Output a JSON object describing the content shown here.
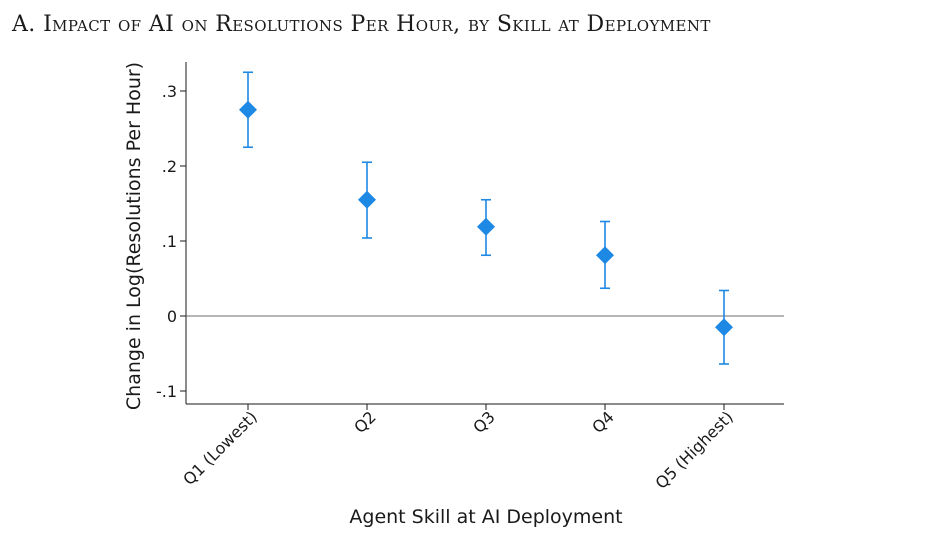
{
  "title": "A. Impact of AI on Resolutions Per Hour, by Skill at Deployment",
  "chart_data": {
    "type": "scatter",
    "title": "A. Impact of AI on Resolutions Per Hour, by Skill at Deployment",
    "xlabel": "Agent Skill at AI Deployment",
    "ylabel": "Change in Log(Resolutions Per Hour)",
    "categories": [
      "Q1 (Lowest)",
      "Q2",
      "Q3",
      "Q4",
      "Q5 (Highest)"
    ],
    "series": [
      {
        "values": [
          0.275,
          0.155,
          0.119,
          0.081,
          -0.015
        ],
        "ci_low": [
          0.225,
          0.104,
          0.081,
          0.037,
          -0.064
        ],
        "ci_high": [
          0.325,
          0.205,
          0.155,
          0.126,
          0.034
        ]
      }
    ],
    "ylim": [
      -0.12,
      0.34
    ],
    "yticks": [
      -0.1,
      0,
      0.1,
      0.2,
      0.3
    ],
    "ytick_labels": [
      "-.1",
      "0",
      ".1",
      ".2",
      ".3"
    ],
    "reference_line": 0,
    "marker": "diamond",
    "color": "#1e88e5",
    "grid": false
  }
}
